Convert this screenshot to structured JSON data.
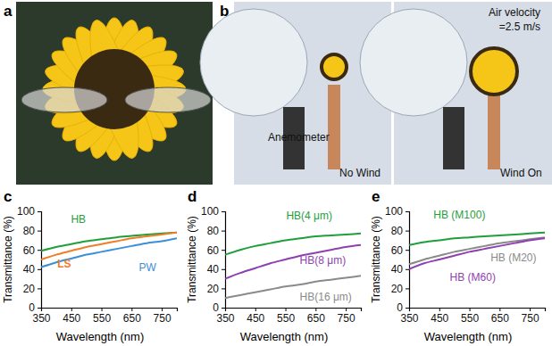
{
  "photo_panels": [
    {
      "label": "a"
    },
    {
      "label": "b",
      "texts": {
        "anemometer": "Anemometer",
        "left_caption": "No Wind",
        "right_caption": "Wind On",
        "velocity": [
          "Air velocity",
          "=2.5 m/s"
        ]
      }
    }
  ],
  "chart_data": [
    {
      "type": "line",
      "title": "c",
      "x_label": "Wavelength (nm)",
      "y_label": "Transmittance (%)",
      "x": [
        350,
        400,
        450,
        500,
        550,
        600,
        650,
        700,
        750,
        800
      ],
      "xlim": [
        350,
        800
      ],
      "xticks": [
        350,
        450,
        550,
        650,
        750
      ],
      "ylim": [
        0,
        100
      ],
      "yticks": [
        0,
        20,
        40,
        60,
        80,
        100
      ],
      "grid": false,
      "series": [
        {
          "name": "HB",
          "color": "#1f9e3c",
          "values": [
            59,
            63,
            66,
            69,
            71,
            73,
            74.5,
            76,
            77,
            78
          ]
        },
        {
          "name": "PW",
          "color": "#3a8fd6",
          "values": [
            42,
            47,
            51,
            55,
            58,
            61,
            64,
            67,
            69,
            72
          ]
        },
        {
          "name": "LS",
          "color": "#f07d28",
          "values": [
            50,
            55,
            59,
            63,
            66,
            69,
            72,
            74,
            76,
            78
          ]
        }
      ]
    },
    {
      "type": "line",
      "title": "d",
      "x_label": "Wavelength (nm)",
      "y_label": "Transmittance (%)",
      "x": [
        350,
        400,
        450,
        500,
        550,
        600,
        650,
        700,
        750,
        800
      ],
      "xlim": [
        350,
        800
      ],
      "xticks": [
        350,
        450,
        550,
        650,
        750
      ],
      "ylim": [
        0,
        100
      ],
      "yticks": [
        0,
        20,
        40,
        60,
        80,
        100
      ],
      "grid": false,
      "series": [
        {
          "name": "HB(4 μm)",
          "color": "#1f9e3c",
          "values": [
            55,
            60,
            64,
            67,
            70,
            72,
            74,
            75,
            76,
            77
          ]
        },
        {
          "name": "HB(8 μm)",
          "color": "#8e3fb0",
          "values": [
            30,
            36,
            41,
            46,
            50,
            54,
            57,
            60,
            63,
            65
          ]
        },
        {
          "name": "HB(16 μm)",
          "color": "#8a8a8a",
          "values": [
            10,
            13,
            16,
            19,
            22,
            24,
            27,
            29,
            31,
            33
          ]
        }
      ]
    },
    {
      "type": "line",
      "title": "e",
      "x_label": "Wavelength (nm)",
      "y_label": "Transmittance (%)",
      "x": [
        350,
        400,
        450,
        500,
        550,
        600,
        650,
        700,
        750,
        800
      ],
      "xlim": [
        350,
        800
      ],
      "xticks": [
        350,
        450,
        550,
        650,
        750
      ],
      "ylim": [
        0,
        100
      ],
      "yticks": [
        0,
        20,
        40,
        60,
        80,
        100
      ],
      "grid": false,
      "series": [
        {
          "name": "HB (M100)",
          "color": "#1f9e3c",
          "values": [
            65,
            68,
            70,
            72,
            73,
            74,
            75,
            76,
            77,
            78
          ]
        },
        {
          "name": "HB (M20)",
          "color": "#8a8a8a",
          "values": [
            45,
            50,
            54,
            58,
            61,
            64,
            67,
            69,
            71,
            73
          ]
        },
        {
          "name": "HB (M60)",
          "color": "#8e3fb0",
          "values": [
            40,
            46,
            50,
            54,
            58,
            61,
            64,
            67,
            70,
            72
          ]
        }
      ]
    }
  ]
}
